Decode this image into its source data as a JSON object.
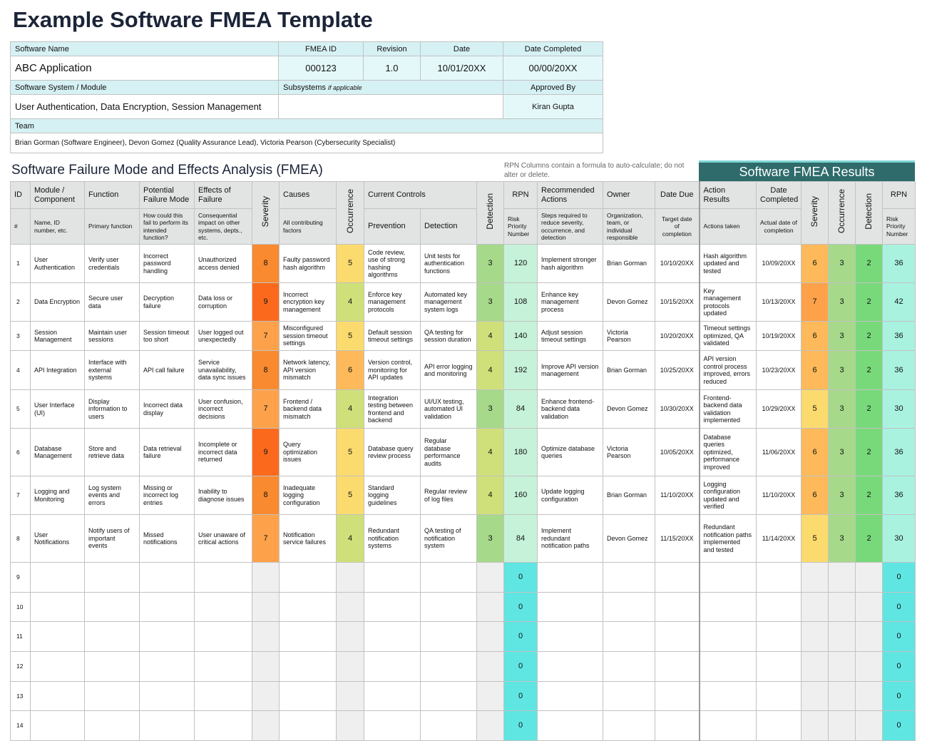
{
  "header": {
    "title": "Example Software FMEA Template"
  },
  "info": {
    "software_name_label": "Software Name",
    "fmea_id_label": "FMEA ID",
    "revision_label": "Revision",
    "date_label": "Date",
    "date_completed_label": "Date Completed",
    "software_name": "ABC Application",
    "fmea_id": "000123",
    "revision": "1.0",
    "date": "10/01/20XX",
    "date_completed": "00/00/20XX",
    "system_label": "Software System / Module",
    "subsystems_label": "Subsystems",
    "subsystems_note": "if applicable",
    "approved_by_label": "Approved By",
    "system": "User Authentication, Data Encryption, Session Management",
    "approved_by": "Kiran Gupta",
    "team_label": "Team",
    "team": "Brian Gorman (Software Engineer), Devon Gomez (Quality Assurance Lead), Victoria Pearson (Cybersecurity Specialist)"
  },
  "fmea": {
    "title": "Software Failure Mode and Effects Analysis (FMEA)",
    "note": "RPN Columns contain a formula to auto-calculate; do not alter or delete.",
    "results_title": "Software FMEA Results",
    "headers": {
      "id": "ID",
      "id_sub": "#",
      "module": "Module / Component",
      "module_sub": "Name, ID number, etc.",
      "function": "Function",
      "function_sub": "Primary function",
      "failure_mode": "Potential Failure Mode",
      "failure_mode_sub": "How could this fail to perform its intended function?",
      "effects": "Effects of Failure",
      "effects_sub": "Consequential impact on other systems, depts., etc.",
      "severity": "Severity",
      "causes": "Causes",
      "causes_sub": "All contributing factors",
      "occurrence": "Occurrence",
      "controls": "Current Controls",
      "prevention": "Prevention",
      "detection_control": "Detection",
      "detection": "Detection",
      "rpn": "RPN",
      "rpn_sub": "Risk Priority Number",
      "actions": "Recommended Actions",
      "actions_sub": "Steps required to reduce severity, occurrence, and detection",
      "owner": "Owner",
      "owner_sub": "Organization, team, or individual responsible",
      "date_due": "Date Due",
      "date_due_sub": "Target date of completion",
      "action_results": "Action Results",
      "action_results_sub": "Actions taken",
      "date_completed": "Date Completed",
      "date_completed_sub": "Actual date of completion",
      "r_severity": "Severity",
      "r_occurrence": "Occurrence",
      "r_detection": "Detection",
      "r_rpn": "RPN",
      "r_rpn_sub": "Risk Priority Number"
    },
    "rows": [
      {
        "id": 1,
        "module": "User Authentication",
        "function": "Verify user credentials",
        "failure_mode": "Incorrect password handling",
        "effects": "Unauthorized access denied",
        "severity": 8,
        "causes": "Faulty password hash algorithm",
        "occurrence": 5,
        "prevention": "Code review, use of strong hashing algorithms",
        "detection_control": "Unit tests for authentication functions",
        "detection": 3,
        "rpn": 120,
        "actions": "Implement stronger hash algorithm",
        "owner": "Brian Gorman",
        "date_due": "10/10/20XX",
        "action_results": "Hash algorithm updated and tested",
        "date_completed": "10/09/20XX",
        "r_severity": 6,
        "r_occurrence": 3,
        "r_detection": 2,
        "r_rpn": 36
      },
      {
        "id": 2,
        "module": "Data Encryption",
        "function": "Secure user data",
        "failure_mode": "Decryption failure",
        "effects": "Data loss or corruption",
        "severity": 9,
        "causes": "Incorrect encryption key management",
        "occurrence": 4,
        "prevention": "Enforce key management protocols",
        "detection_control": "Automated key management system logs",
        "detection": 3,
        "rpn": 108,
        "actions": "Enhance key management process",
        "owner": "Devon Gomez",
        "date_due": "10/15/20XX",
        "action_results": "Key management protocols updated",
        "date_completed": "10/13/20XX",
        "r_severity": 7,
        "r_occurrence": 3,
        "r_detection": 2,
        "r_rpn": 42
      },
      {
        "id": 3,
        "module": "Session Management",
        "function": "Maintain user sessions",
        "failure_mode": "Session timeout too short",
        "effects": "User logged out unexpectedly",
        "severity": 7,
        "causes": "Misconfigured session timeout settings",
        "occurrence": 5,
        "prevention": "Default session timeout settings",
        "detection_control": "QA testing for session duration",
        "detection": 4,
        "rpn": 140,
        "actions": "Adjust session timeout settings",
        "owner": "Victoria Pearson",
        "date_due": "10/20/20XX",
        "action_results": "Timeout settings optimized, QA validated",
        "date_completed": "10/19/20XX",
        "r_severity": 6,
        "r_occurrence": 3,
        "r_detection": 2,
        "r_rpn": 36
      },
      {
        "id": 4,
        "module": "API Integration",
        "function": "Interface with external systems",
        "failure_mode": "API call failure",
        "effects": "Service unavailability, data sync issues",
        "severity": 8,
        "causes": "Network latency, API version mismatch",
        "occurrence": 6,
        "prevention": "Version control, monitoring for API updates",
        "detection_control": "API error logging and monitoring",
        "detection": 4,
        "rpn": 192,
        "actions": "Improve API version management",
        "owner": "Brian Gorman",
        "date_due": "10/25/20XX",
        "action_results": "API version control process improved, errors reduced",
        "date_completed": "10/23/20XX",
        "r_severity": 6,
        "r_occurrence": 3,
        "r_detection": 2,
        "r_rpn": 36
      },
      {
        "id": 5,
        "module": "User Interface (UI)",
        "function": "Display information to users",
        "failure_mode": "Incorrect data display",
        "effects": "User confusion, incorrect decisions",
        "severity": 7,
        "causes": "Frontend / backend data mismatch",
        "occurrence": 4,
        "prevention": "Integration testing between frontend and backend",
        "detection_control": "UI/UX testing, automated UI validation",
        "detection": 3,
        "rpn": 84,
        "actions": "Enhance frontend-backend data validation",
        "owner": "Devon Gomez",
        "date_due": "10/30/20XX",
        "action_results": "Frontend-backend data validation implemented",
        "date_completed": "10/29/20XX",
        "r_severity": 5,
        "r_occurrence": 3,
        "r_detection": 2,
        "r_rpn": 30
      },
      {
        "id": 6,
        "module": "Database Management",
        "function": "Store and retrieve data",
        "failure_mode": "Data retrieval failure",
        "effects": "Incomplete or incorrect data returned",
        "severity": 9,
        "causes": "Query optimization issues",
        "occurrence": 5,
        "prevention": "Database query review process",
        "detection_control": "Regular database performance audits",
        "detection": 4,
        "rpn": 180,
        "actions": "Optimize database queries",
        "owner": "Victoria Pearson",
        "date_due": "10/05/20XX",
        "action_results": "Database queries optimized, performance improved",
        "date_completed": "11/06/20XX",
        "r_severity": 6,
        "r_occurrence": 3,
        "r_detection": 2,
        "r_rpn": 36
      },
      {
        "id": 7,
        "module": "Logging and Monitoring",
        "function": "Log system events and errors",
        "failure_mode": "Missing or incorrect log entries",
        "effects": "Inability to diagnose issues",
        "severity": 8,
        "causes": "Inadequate logging configuration",
        "occurrence": 5,
        "prevention": "Standard logging guidelines",
        "detection_control": "Regular review of log files",
        "detection": 4,
        "rpn": 160,
        "actions": "Update logging configuration",
        "owner": "Brian Gorman",
        "date_due": "11/10/20XX",
        "action_results": "Logging configuration updated and verified",
        "date_completed": "11/10/20XX",
        "r_severity": 6,
        "r_occurrence": 3,
        "r_detection": 2,
        "r_rpn": 36
      },
      {
        "id": 8,
        "module": "User Notifications",
        "function": "Notify users of important events",
        "failure_mode": "Missed notifications",
        "effects": "User unaware of critical actions",
        "severity": 7,
        "causes": "Notification service failures",
        "occurrence": 4,
        "prevention": "Redundant notification systems",
        "detection_control": "QA testing of notification system",
        "detection": 3,
        "rpn": 84,
        "actions": "Implement redundant notification paths",
        "owner": "Devon Gomez",
        "date_due": "11/15/20XX",
        "action_results": "Redundant notification paths implemented and tested",
        "date_completed": "11/14/20XX",
        "r_severity": 5,
        "r_occurrence": 3,
        "r_detection": 2,
        "r_rpn": 30
      },
      {
        "id": 9,
        "rpn": 0,
        "r_rpn": 0
      },
      {
        "id": 10,
        "rpn": 0,
        "r_rpn": 0
      },
      {
        "id": 11,
        "rpn": 0,
        "r_rpn": 0
      },
      {
        "id": 12,
        "rpn": 0,
        "r_rpn": 0
      },
      {
        "id": 13,
        "rpn": 0,
        "r_rpn": 0
      },
      {
        "id": 14,
        "rpn": 0,
        "r_rpn": 0
      }
    ]
  }
}
